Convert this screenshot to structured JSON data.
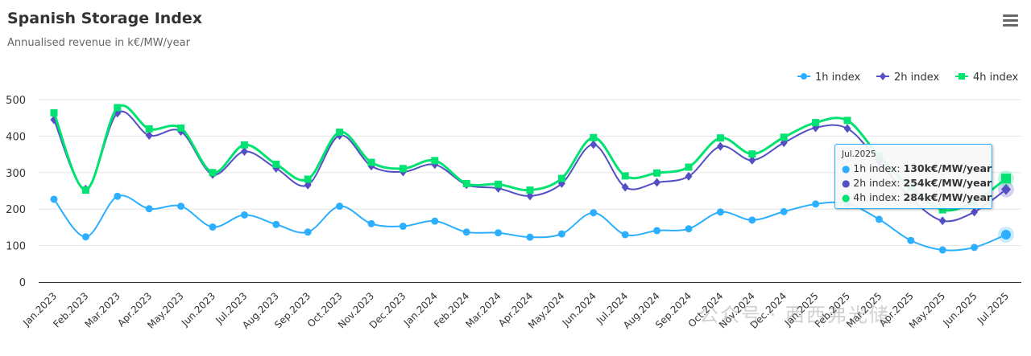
{
  "header": {
    "title": "Spanish Storage Index",
    "subtitle": "Annualised revenue in k€/MW/year",
    "menu_icon": "hamburger-menu-icon"
  },
  "tooltip": {
    "header": "Jul.2025",
    "rows": [
      {
        "label": "1h index: ",
        "value": "130k€/MW/year",
        "color": "#2caffe"
      },
      {
        "label": "2h index: ",
        "value": "254k€/MW/year",
        "color": "#544fc5"
      },
      {
        "label": "4h index: ",
        "value": "284k€/MW/year",
        "color": "#00e272"
      }
    ]
  },
  "watermark": "公众号 · 西西弗光储",
  "chart_data": {
    "type": "line",
    "title": "Spanish Storage Index",
    "subtitle": "Annualised revenue in k€/MW/year",
    "xlabel": "",
    "ylabel": "",
    "ylim": [
      0,
      500
    ],
    "yticks": [
      0,
      100,
      200,
      300,
      400,
      500
    ],
    "grid": true,
    "legend": "top-right",
    "categories": [
      "Jan.2023",
      "Feb.2023",
      "Mar.2023",
      "Apr.2023",
      "May.2023",
      "Jun.2023",
      "Jul.2023",
      "Aug.2023",
      "Sep.2023",
      "Oct.2023",
      "Nov.2023",
      "Dec.2023",
      "Jan.2024",
      "Feb.2024",
      "Mar.2024",
      "Apr.2024",
      "May.2024",
      "Jun.2024",
      "Jul.2024",
      "Aug.2024",
      "Sep.2024",
      "Oct.2024",
      "Nov.2024",
      "Dec.2024",
      "Jan.2025",
      "Feb.2025",
      "Mar.2025",
      "Apr.2025",
      "May.2025",
      "Jun.2025",
      "Jul.2025"
    ],
    "series": [
      {
        "name": "1h index",
        "color": "#2caffe",
        "marker": "circle",
        "values": [
          227,
          124,
          235,
          201,
          208,
          151,
          184,
          158,
          137,
          208,
          160,
          153,
          167,
          137,
          135,
          123,
          132,
          190,
          130,
          141,
          146,
          192,
          170,
          193,
          214,
          215,
          172,
          114,
          88,
          95,
          130
        ]
      },
      {
        "name": "2h index",
        "color": "#544fc5",
        "marker": "diamond",
        "values": [
          445,
          255,
          463,
          402,
          413,
          295,
          358,
          312,
          266,
          402,
          318,
          302,
          322,
          267,
          257,
          236,
          270,
          377,
          260,
          273,
          290,
          372,
          334,
          382,
          423,
          421,
          330,
          230,
          168,
          192,
          254
        ]
      },
      {
        "name": "4h index",
        "color": "#00e272",
        "marker": "square",
        "values": [
          464,
          252,
          478,
          420,
          422,
          300,
          376,
          323,
          282,
          411,
          328,
          311,
          333,
          270,
          268,
          252,
          284,
          396,
          291,
          299,
          315,
          395,
          351,
          397,
          437,
          443,
          345,
          260,
          198,
          220,
          284
        ]
      }
    ]
  }
}
